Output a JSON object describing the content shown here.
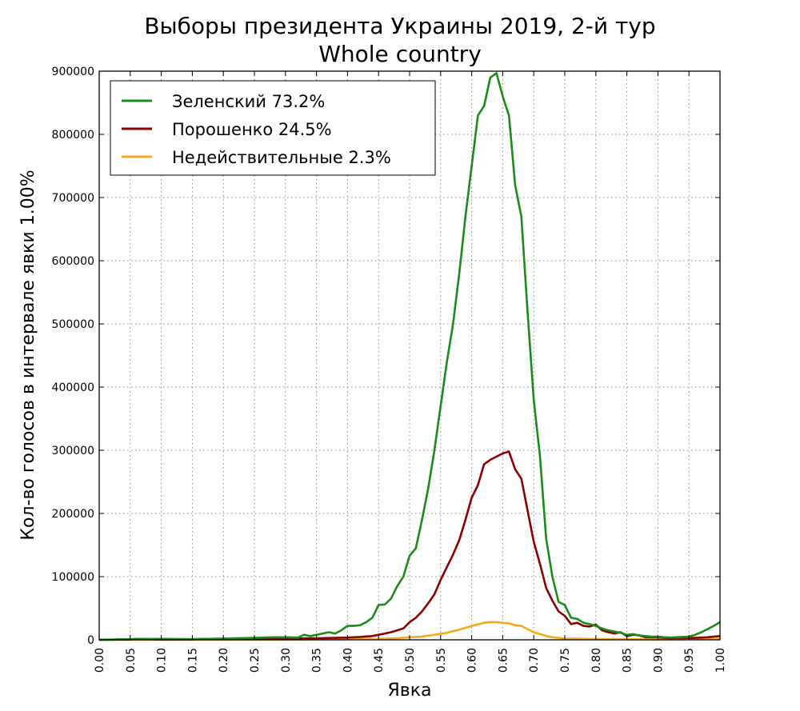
{
  "chart_data": {
    "type": "line",
    "title": "Выборы президента Украины 2019, 2-й тур",
    "subtitle": "Whole country",
    "xlabel": "Явка",
    "ylabel": "Кол-во голосов в интервале явки 1.00%",
    "xlim": [
      0,
      1
    ],
    "ylim": [
      0,
      900000
    ],
    "grid": true,
    "legend_position": "top-left",
    "x_ticks": [
      "0.00",
      "0.05",
      "0.10",
      "0.15",
      "0.20",
      "0.25",
      "0.30",
      "0.35",
      "0.40",
      "0.45",
      "0.50",
      "0.55",
      "0.60",
      "0.65",
      "0.70",
      "0.75",
      "0.80",
      "0.85",
      "0.90",
      "0.95",
      "1.00"
    ],
    "y_ticks": [
      "0",
      "100000",
      "200000",
      "300000",
      "400000",
      "500000",
      "600000",
      "700000",
      "800000",
      "900000"
    ],
    "series": [
      {
        "name": "Зеленский 73.2%",
        "color": "#1a8c1a",
        "points": [
          [
            0.0,
            0
          ],
          [
            0.05,
            1000
          ],
          [
            0.1,
            1500
          ],
          [
            0.15,
            1000
          ],
          [
            0.2,
            2000
          ],
          [
            0.25,
            3000
          ],
          [
            0.28,
            4000
          ],
          [
            0.3,
            4000
          ],
          [
            0.32,
            3500
          ],
          [
            0.33,
            8000
          ],
          [
            0.34,
            6000
          ],
          [
            0.35,
            8000
          ],
          [
            0.36,
            10000
          ],
          [
            0.37,
            12000
          ],
          [
            0.38,
            10000
          ],
          [
            0.39,
            15000
          ],
          [
            0.4,
            22000
          ],
          [
            0.41,
            22000
          ],
          [
            0.42,
            23000
          ],
          [
            0.43,
            28000
          ],
          [
            0.44,
            35000
          ],
          [
            0.45,
            55000
          ],
          [
            0.46,
            56000
          ],
          [
            0.47,
            65000
          ],
          [
            0.48,
            85000
          ],
          [
            0.49,
            100000
          ],
          [
            0.5,
            133000
          ],
          [
            0.51,
            145000
          ],
          [
            0.52,
            190000
          ],
          [
            0.53,
            240000
          ],
          [
            0.54,
            300000
          ],
          [
            0.55,
            370000
          ],
          [
            0.56,
            440000
          ],
          [
            0.57,
            500000
          ],
          [
            0.58,
            580000
          ],
          [
            0.59,
            670000
          ],
          [
            0.6,
            750000
          ],
          [
            0.61,
            830000
          ],
          [
            0.62,
            845000
          ],
          [
            0.63,
            890000
          ],
          [
            0.64,
            897000
          ],
          [
            0.65,
            860000
          ],
          [
            0.66,
            830000
          ],
          [
            0.67,
            720000
          ],
          [
            0.68,
            670000
          ],
          [
            0.69,
            520000
          ],
          [
            0.7,
            380000
          ],
          [
            0.71,
            290000
          ],
          [
            0.72,
            160000
          ],
          [
            0.73,
            100000
          ],
          [
            0.74,
            60000
          ],
          [
            0.75,
            55000
          ],
          [
            0.76,
            35000
          ],
          [
            0.77,
            33000
          ],
          [
            0.78,
            27000
          ],
          [
            0.79,
            25000
          ],
          [
            0.8,
            22000
          ],
          [
            0.81,
            18000
          ],
          [
            0.82,
            15000
          ],
          [
            0.83,
            13000
          ],
          [
            0.84,
            11000
          ],
          [
            0.85,
            8000
          ],
          [
            0.86,
            9000
          ],
          [
            0.87,
            7000
          ],
          [
            0.88,
            6000
          ],
          [
            0.89,
            5000
          ],
          [
            0.9,
            5000
          ],
          [
            0.91,
            4000
          ],
          [
            0.92,
            3500
          ],
          [
            0.93,
            4000
          ],
          [
            0.94,
            4500
          ],
          [
            0.95,
            5000
          ],
          [
            0.96,
            8000
          ],
          [
            0.97,
            12000
          ],
          [
            0.98,
            17000
          ],
          [
            0.99,
            22000
          ],
          [
            1.0,
            28000
          ]
        ]
      },
      {
        "name": "Порошенко 24.5%",
        "color": "#8b0000",
        "points": [
          [
            0.0,
            0
          ],
          [
            0.05,
            500
          ],
          [
            0.06,
            1500
          ],
          [
            0.1,
            500
          ],
          [
            0.15,
            800
          ],
          [
            0.17,
            1500
          ],
          [
            0.2,
            1000
          ],
          [
            0.25,
            1500
          ],
          [
            0.3,
            2000
          ],
          [
            0.35,
            2500
          ],
          [
            0.4,
            3500
          ],
          [
            0.42,
            4500
          ],
          [
            0.44,
            6000
          ],
          [
            0.45,
            8000
          ],
          [
            0.46,
            10000
          ],
          [
            0.47,
            12000
          ],
          [
            0.48,
            15000
          ],
          [
            0.49,
            18000
          ],
          [
            0.5,
            28000
          ],
          [
            0.51,
            35000
          ],
          [
            0.52,
            45000
          ],
          [
            0.53,
            58000
          ],
          [
            0.54,
            72000
          ],
          [
            0.55,
            95000
          ],
          [
            0.56,
            115000
          ],
          [
            0.57,
            135000
          ],
          [
            0.58,
            158000
          ],
          [
            0.59,
            190000
          ],
          [
            0.6,
            225000
          ],
          [
            0.61,
            245000
          ],
          [
            0.62,
            278000
          ],
          [
            0.63,
            285000
          ],
          [
            0.64,
            290000
          ],
          [
            0.65,
            295000
          ],
          [
            0.66,
            298000
          ],
          [
            0.67,
            270000
          ],
          [
            0.68,
            255000
          ],
          [
            0.69,
            205000
          ],
          [
            0.7,
            155000
          ],
          [
            0.71,
            120000
          ],
          [
            0.72,
            82000
          ],
          [
            0.73,
            62000
          ],
          [
            0.74,
            45000
          ],
          [
            0.75,
            38000
          ],
          [
            0.76,
            25000
          ],
          [
            0.77,
            27000
          ],
          [
            0.78,
            22000
          ],
          [
            0.79,
            21000
          ],
          [
            0.8,
            24000
          ],
          [
            0.81,
            15000
          ],
          [
            0.82,
            12000
          ],
          [
            0.83,
            10000
          ],
          [
            0.84,
            12000
          ],
          [
            0.85,
            6000
          ],
          [
            0.86,
            8000
          ],
          [
            0.87,
            7000
          ],
          [
            0.88,
            4000
          ],
          [
            0.89,
            4000
          ],
          [
            0.9,
            4000
          ],
          [
            0.91,
            3000
          ],
          [
            0.92,
            2500
          ],
          [
            0.93,
            3000
          ],
          [
            0.94,
            3000
          ],
          [
            0.95,
            3000
          ],
          [
            0.96,
            3000
          ],
          [
            0.97,
            3500
          ],
          [
            0.98,
            4000
          ],
          [
            0.99,
            5000
          ],
          [
            1.0,
            6000
          ]
        ]
      },
      {
        "name": "Недействительные 2.3%",
        "color": "#f5a81c",
        "points": [
          [
            0.0,
            0
          ],
          [
            0.3,
            500
          ],
          [
            0.4,
            1000
          ],
          [
            0.45,
            1500
          ],
          [
            0.48,
            2500
          ],
          [
            0.5,
            4000
          ],
          [
            0.52,
            5000
          ],
          [
            0.54,
            8000
          ],
          [
            0.56,
            11000
          ],
          [
            0.58,
            16000
          ],
          [
            0.6,
            22000
          ],
          [
            0.62,
            27000
          ],
          [
            0.63,
            28000
          ],
          [
            0.64,
            28000
          ],
          [
            0.65,
            27000
          ],
          [
            0.66,
            26000
          ],
          [
            0.67,
            23000
          ],
          [
            0.68,
            22000
          ],
          [
            0.69,
            17000
          ],
          [
            0.7,
            12000
          ],
          [
            0.71,
            9000
          ],
          [
            0.72,
            6000
          ],
          [
            0.73,
            4000
          ],
          [
            0.74,
            3000
          ],
          [
            0.75,
            2000
          ],
          [
            0.78,
            1500
          ],
          [
            0.8,
            1200
          ],
          [
            0.85,
            1000
          ],
          [
            0.9,
            800
          ],
          [
            0.95,
            1000
          ],
          [
            1.0,
            1500
          ]
        ]
      }
    ]
  }
}
